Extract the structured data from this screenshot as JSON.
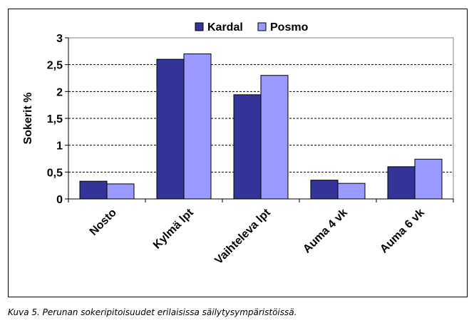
{
  "caption": "Kuva 5. Perunan sokeripitoisuudet erilaisissa säilytysympäristöissä.",
  "chart_data": {
    "type": "bar",
    "title": "",
    "xlabel": "",
    "ylabel": "Sokerit %",
    "ylim": [
      0,
      3
    ],
    "yticks": [
      "0",
      "0,5",
      "1",
      "1,5",
      "2",
      "2,5",
      "3"
    ],
    "grid": "dashed horizontal",
    "legend_position": "top",
    "categories": [
      "Nosto",
      "Kylmä lpt",
      "Vaihteleva lpt",
      "Auma 4 vk",
      "Auma 6 vk"
    ],
    "series": [
      {
        "name": "Kardal",
        "color": "#333399",
        "values": [
          0.33,
          2.6,
          1.94,
          0.35,
          0.6
        ]
      },
      {
        "name": "Posmo",
        "color": "#9999ff",
        "values": [
          0.28,
          2.7,
          2.3,
          0.29,
          0.74
        ]
      }
    ]
  }
}
